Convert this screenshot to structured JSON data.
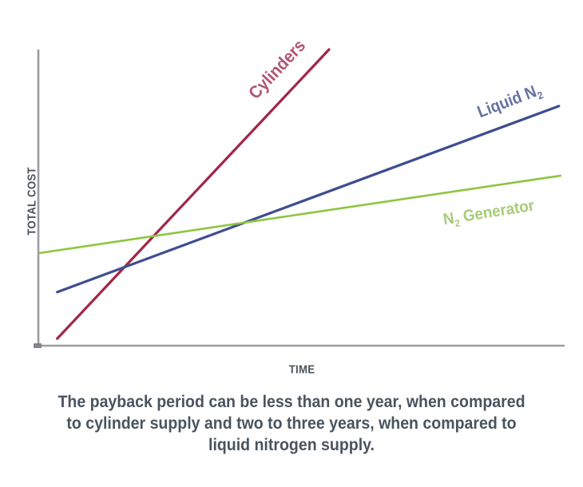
{
  "chart_data": {
    "type": "line",
    "title": "",
    "xlabel": "TIME",
    "ylabel": "TOTAL COST",
    "grid": false,
    "legend_position": "inline-labels-on-lines",
    "axes_have_numeric_ticks": false,
    "x_range_normalized": [
      0,
      1
    ],
    "y_range_normalized": [
      0,
      1
    ],
    "series": [
      {
        "name": "Cylinders",
        "color": "#a32647",
        "label_color": "#b25670",
        "stroke_width": 3.2,
        "points_normalized": [
          {
            "x": 0.033,
            "y": 0.024
          },
          {
            "x": 0.551,
            "y": 1.0
          }
        ]
      },
      {
        "name": "Liquid N2",
        "color": "#3e4d90",
        "label_color": "#6572a4",
        "stroke_width": 3.2,
        "points_normalized": [
          {
            "x": 0.033,
            "y": 0.181
          },
          {
            "x": 0.989,
            "y": 0.809
          }
        ]
      },
      {
        "name": "N2 Generator",
        "color": "#8cc63f",
        "label_color": "#a7cc78",
        "stroke_width": 2.6,
        "points_normalized": [
          {
            "x": 0.0,
            "y": 0.313
          },
          {
            "x": 0.992,
            "y": 0.574
          }
        ]
      }
    ],
    "intersections_normalized": [
      {
        "between": [
          "Cylinders",
          "Liquid N2"
        ],
        "x": 0.159,
        "y": 0.264
      },
      {
        "between": [
          "Cylinders",
          "N2 Generator"
        ],
        "x": 0.215,
        "y": 0.369
      },
      {
        "between": [
          "Liquid N2",
          "N2 Generator"
        ],
        "x": 0.392,
        "y": 0.415
      }
    ],
    "annotations": {
      "labels": {
        "cylinders": {
          "text": "Cylinders"
        },
        "liquid_n2": {
          "pre": "Liquid N",
          "sub": "2",
          "post": ""
        },
        "n2_generator": {
          "pre": "N",
          "sub": "2",
          "post": " Generator"
        }
      }
    }
  },
  "axis": {
    "color": "#9c9ca0",
    "label_color": "#4b545c"
  },
  "caption": {
    "color": "#49545f",
    "lines": [
      "The payback period can be less than one year, when compared",
      "to cylinder supply and two to three years, when compared to",
      "liquid nitrogen supply."
    ]
  }
}
